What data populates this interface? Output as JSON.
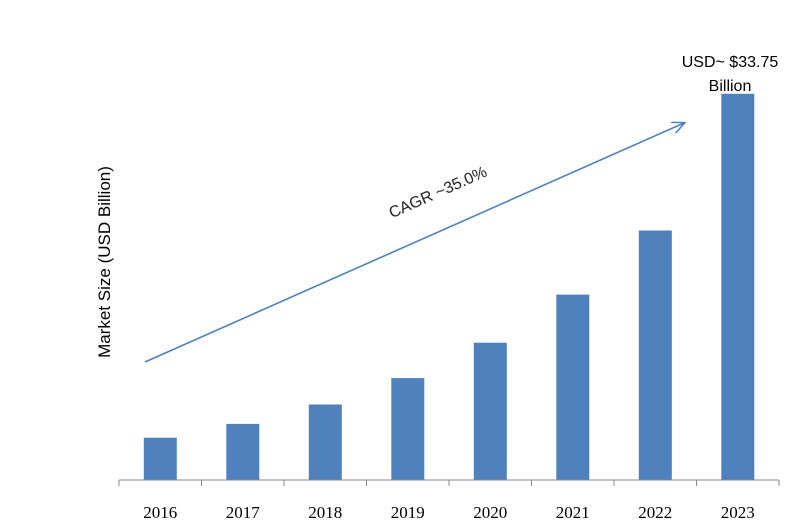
{
  "chart_data": {
    "type": "bar",
    "categories": [
      "2016",
      "2017",
      "2018",
      "2019",
      "2020",
      "2021",
      "2022",
      "2023"
    ],
    "values": [
      3.7,
      4.9,
      6.6,
      8.9,
      12.0,
      16.2,
      21.8,
      33.75
    ],
    "ylabel": "Market Size (USD Billion)",
    "ylim": [
      0,
      36
    ],
    "bar_color": "#4f81bd",
    "arrow_color": "#4f81bd",
    "grid": false,
    "annotations": {
      "last_bar_label_line1": "USD~ $33.75",
      "last_bar_label_line2": "Billion",
      "cagr": "CAGR ~35.0%"
    }
  }
}
